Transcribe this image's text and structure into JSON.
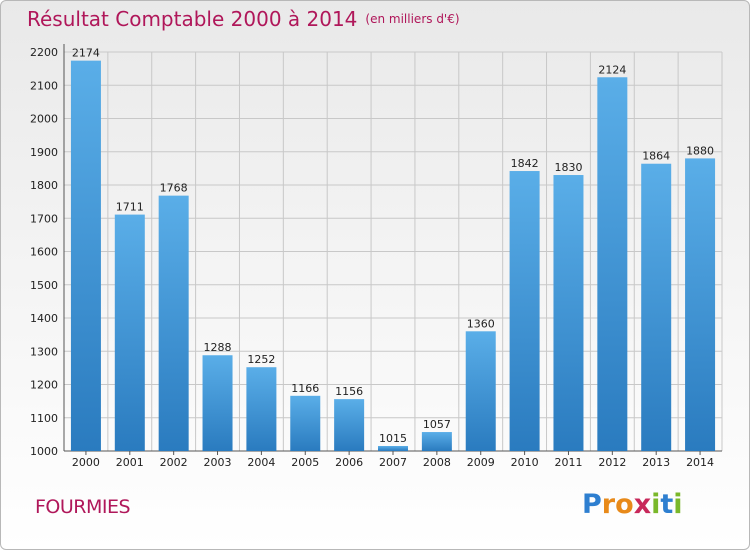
{
  "title": "Résultat Comptable 2000 à 2014",
  "subtitle": "(en milliers d'€)",
  "commune": "FOURMIES",
  "logo": {
    "letters": [
      "P",
      "r",
      "o",
      "x",
      "i",
      "t",
      "i"
    ],
    "colors": [
      "#2e7fd0",
      "#e88a1a",
      "#e88a1a",
      "#c8285a",
      "#7ab82a",
      "#2e7fd0",
      "#7ab82a"
    ]
  },
  "colors": {
    "accent": "#b0175a",
    "bar_top": "#5aaee8",
    "bar_bottom": "#2a7bbf",
    "grid": "#c8c8c8"
  },
  "chart_data": {
    "type": "bar",
    "categories": [
      "2000",
      "2001",
      "2002",
      "2003",
      "2004",
      "2005",
      "2006",
      "2007",
      "2008",
      "2009",
      "2010",
      "2011",
      "2012",
      "2013",
      "2014"
    ],
    "values": [
      2174,
      1711,
      1768,
      1288,
      1252,
      1166,
      1156,
      1015,
      1057,
      1360,
      1842,
      1830,
      2124,
      1864,
      1880
    ],
    "value_labels": [
      "2174",
      "1711",
      "1768",
      "1288",
      "1252",
      "1166",
      "1156",
      "1015",
      "1057",
      "1360",
      "1842",
      "1830",
      "2124",
      "1864",
      "1880"
    ],
    "yticks": [
      "1000",
      "1100",
      "1200",
      "1300",
      "1400",
      "1500",
      "1600",
      "1700",
      "1800",
      "1900",
      "2000",
      "2100",
      "2200"
    ],
    "ylim": [
      1000,
      2200
    ],
    "grid": true,
    "legend": "none"
  }
}
